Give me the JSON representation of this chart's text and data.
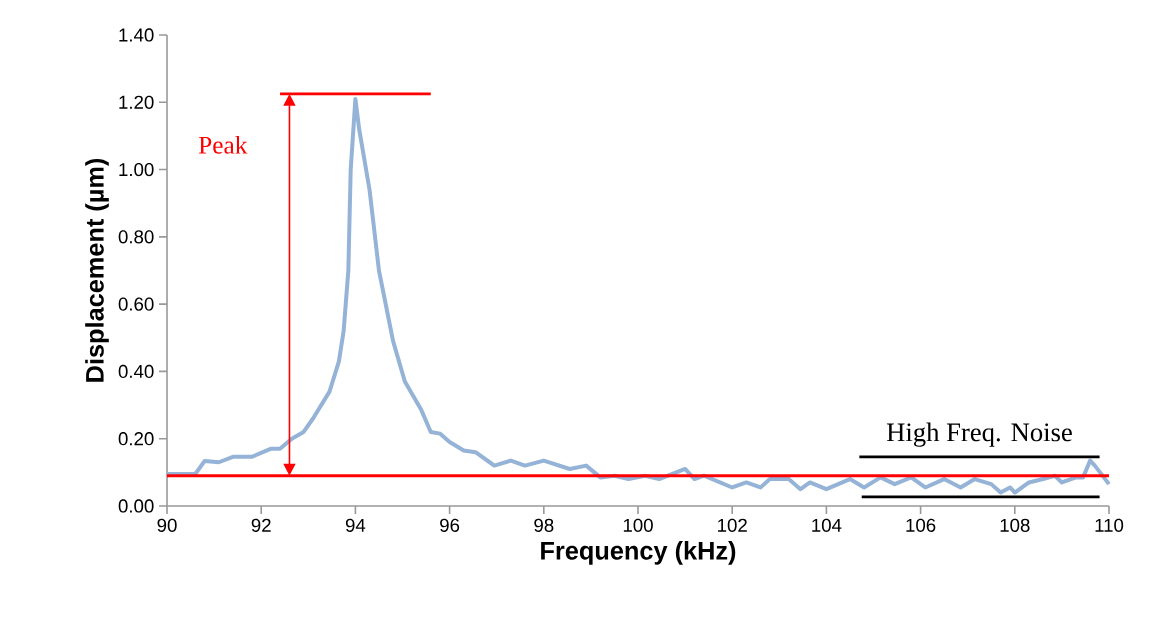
{
  "chart_data": {
    "type": "line",
    "xlabel": "Frequency (kHz)",
    "ylabel": "Displacement (µm)",
    "xlim": [
      90,
      110
    ],
    "ylim": [
      0,
      1.4
    ],
    "xticks": [
      90,
      92,
      94,
      96,
      98,
      100,
      102,
      104,
      106,
      108,
      110
    ],
    "yticks": [
      {
        "value": 0,
        "label": "0.00"
      },
      {
        "value": 0.2,
        "label": "0.20"
      },
      {
        "value": 0.4,
        "label": "0.40"
      },
      {
        "value": 0.6,
        "label": "0.60"
      },
      {
        "value": 0.8,
        "label": "0.80"
      },
      {
        "value": 1.0,
        "label": "1.00"
      },
      {
        "value": 1.2,
        "label": "1.20"
      },
      {
        "value": 1.4,
        "label": "1.40"
      }
    ],
    "series": [
      {
        "color": "#95b3d7",
        "x": [
          90,
          90.6,
          90.8,
          91.1,
          91.4,
          91.8,
          92.2,
          92.4,
          92.65,
          92.9,
          93.1,
          93.45,
          93.65,
          93.75,
          93.85,
          93.9,
          94.0,
          94.08,
          94.3,
          94.5,
          94.8,
          95.05,
          95.4,
          95.6,
          95.8,
          96.0,
          96.3,
          96.55,
          96.85,
          96.95,
          97.3,
          97.6,
          98.0,
          98.55,
          98.9,
          99.2,
          99.5,
          99.8,
          100.15,
          100.45,
          101.0,
          101.2,
          101.4,
          102.0,
          102.3,
          102.6,
          102.8,
          103.2,
          103.45,
          103.65,
          104.0,
          104.5,
          104.8,
          105.15,
          105.45,
          105.8,
          106.1,
          106.5,
          106.85,
          107.15,
          107.5,
          107.7,
          107.9,
          108.0,
          108.3,
          108.6,
          108.85,
          109.0,
          109.3,
          109.45,
          109.6,
          109.7,
          110
        ],
        "values": [
          0.095,
          0.095,
          0.134,
          0.13,
          0.146,
          0.146,
          0.17,
          0.17,
          0.2,
          0.22,
          0.26,
          0.34,
          0.43,
          0.52,
          0.7,
          1.0,
          1.21,
          1.12,
          0.94,
          0.7,
          0.49,
          0.37,
          0.285,
          0.22,
          0.215,
          0.19,
          0.165,
          0.16,
          0.13,
          0.12,
          0.135,
          0.12,
          0.135,
          0.11,
          0.12,
          0.085,
          0.09,
          0.08,
          0.09,
          0.08,
          0.11,
          0.08,
          0.09,
          0.055,
          0.07,
          0.055,
          0.08,
          0.08,
          0.05,
          0.07,
          0.05,
          0.08,
          0.055,
          0.085,
          0.065,
          0.085,
          0.055,
          0.08,
          0.055,
          0.08,
          0.065,
          0.04,
          0.055,
          0.04,
          0.07,
          0.08,
          0.09,
          0.07,
          0.085,
          0.085,
          0.135,
          0.12,
          0.065
        ]
      },
      {
        "color": "#ff0000",
        "x": [
          92.4,
          95.6
        ],
        "values": [
          1.225,
          1.225
        ]
      },
      {
        "color": "#000000",
        "x": [
          104.7,
          109.8
        ],
        "values": [
          0.146,
          0.146
        ]
      },
      {
        "color": "#000000",
        "x": [
          104.75,
          109.8
        ],
        "values": [
          0.027,
          0.027
        ]
      }
    ],
    "ref_lines": [
      {
        "axis": "y",
        "value": 0.09,
        "color": "#ff0000"
      }
    ],
    "annotations": [
      {
        "text": "Peak",
        "x": 92.6,
        "y": 1.225
      },
      {
        "text": "High Freq. Noise",
        "x": 107.25,
        "y": 0.146
      }
    ]
  }
}
